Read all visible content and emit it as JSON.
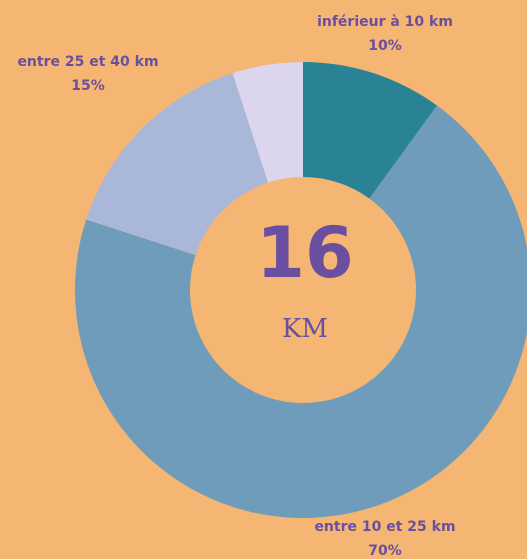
{
  "chart_data": {
    "type": "donut",
    "categories": [
      "inférieur à 10 km",
      "entre 10 et 25 km",
      "entre 25 et 40 km",
      null
    ],
    "values": [
      10,
      70,
      15,
      5
    ],
    "value_labels": [
      "10%",
      "70%",
      "15%",
      null
    ],
    "colors": [
      "#2a8394",
      "#6f9cba",
      "#a9b8d8",
      "#dcd5ee"
    ],
    "center_value": 16,
    "center_unit": "KM"
  }
}
